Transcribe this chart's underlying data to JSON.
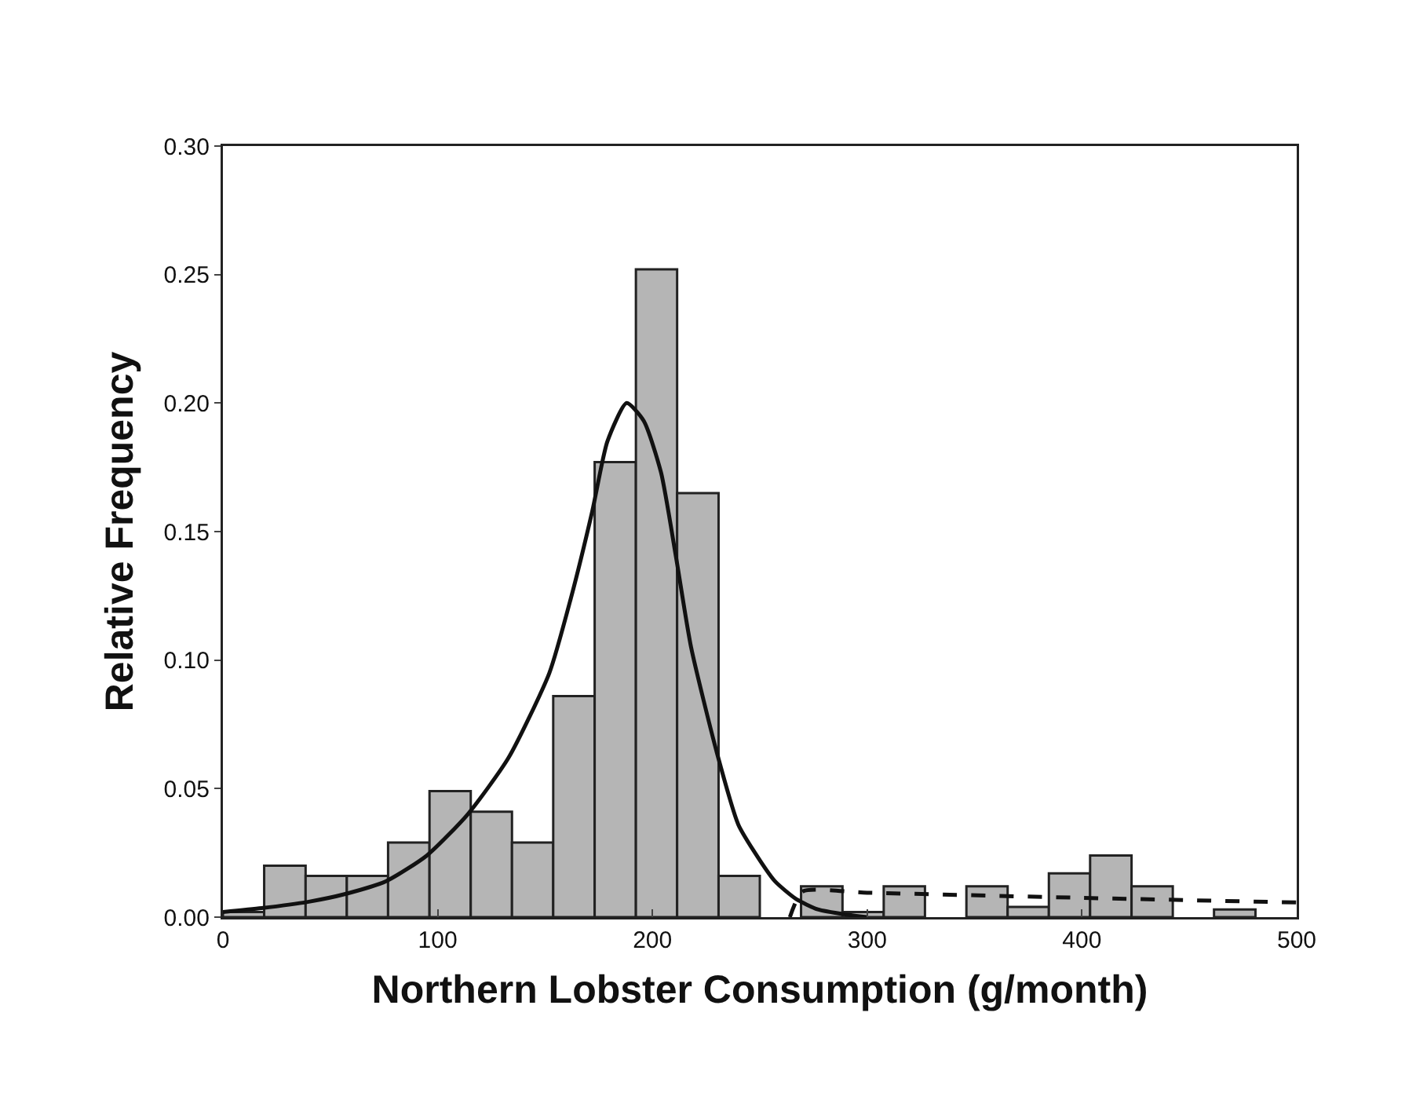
{
  "chart_data": {
    "type": "histogram",
    "xlabel": "Northern Lobster Consumption (g/month)",
    "ylabel": "Relative Frequency",
    "bins": [
      0,
      19.2,
      38.5,
      57.7,
      76.9,
      96.2,
      115.4,
      134.6,
      153.8,
      173.1,
      192.3,
      211.5,
      230.8,
      250,
      269.2,
      288.5,
      307.7,
      326.9,
      346.2,
      365.4,
      384.6,
      403.8,
      423.1,
      442.3,
      461.5,
      480.8,
      500
    ],
    "values": [
      0.002,
      0.02,
      0.016,
      0.016,
      0.029,
      0.049,
      0.041,
      0.029,
      0.086,
      0.177,
      0.252,
      0.165,
      0.016,
      0,
      0.012,
      0.002,
      0.012,
      0,
      0.012,
      0.004,
      0.017,
      0.024,
      0.012,
      0,
      0.003,
      0
    ],
    "color": "#b5b5b5",
    "series": [
      {
        "type": "line",
        "color": "#111111",
        "line_style": "solid",
        "x": [
          0,
          18,
          40,
          57,
          76,
          95,
          114,
          133,
          152,
          162,
          172,
          179,
          188,
          196,
          204,
          211,
          218,
          230,
          240,
          247,
          257,
          267,
          277,
          290,
          300
        ],
        "values": [
          0.002,
          0.0035,
          0.006,
          0.009,
          0.014,
          0.024,
          0.04,
          0.062,
          0.095,
          0.124,
          0.158,
          0.185,
          0.2,
          0.193,
          0.173,
          0.14,
          0.105,
          0.064,
          0.036,
          0.026,
          0.014,
          0.007,
          0.003,
          0.001,
          0
        ]
      },
      {
        "type": "line",
        "color": "#111111",
        "line_style": "dashed",
        "x": [
          264,
          270,
          300,
          400,
          500
        ],
        "values": [
          0,
          0.01,
          0.0095,
          0.0075,
          0.0057
        ]
      }
    ],
    "xlim": [
      0,
      500
    ],
    "ylim": [
      0,
      0.3
    ],
    "xticks": [
      0,
      100,
      200,
      300,
      400,
      500
    ],
    "yticks": [
      {
        "value": 0,
        "label": "0.00"
      },
      {
        "value": 0.05,
        "label": "0.05"
      },
      {
        "value": 0.1,
        "label": "0.10"
      },
      {
        "value": 0.15,
        "label": "0.15"
      },
      {
        "value": 0.2,
        "label": "0.20"
      },
      {
        "value": 0.25,
        "label": "0.25"
      },
      {
        "value": 0.3,
        "label": "0.30"
      }
    ],
    "grid": false
  }
}
